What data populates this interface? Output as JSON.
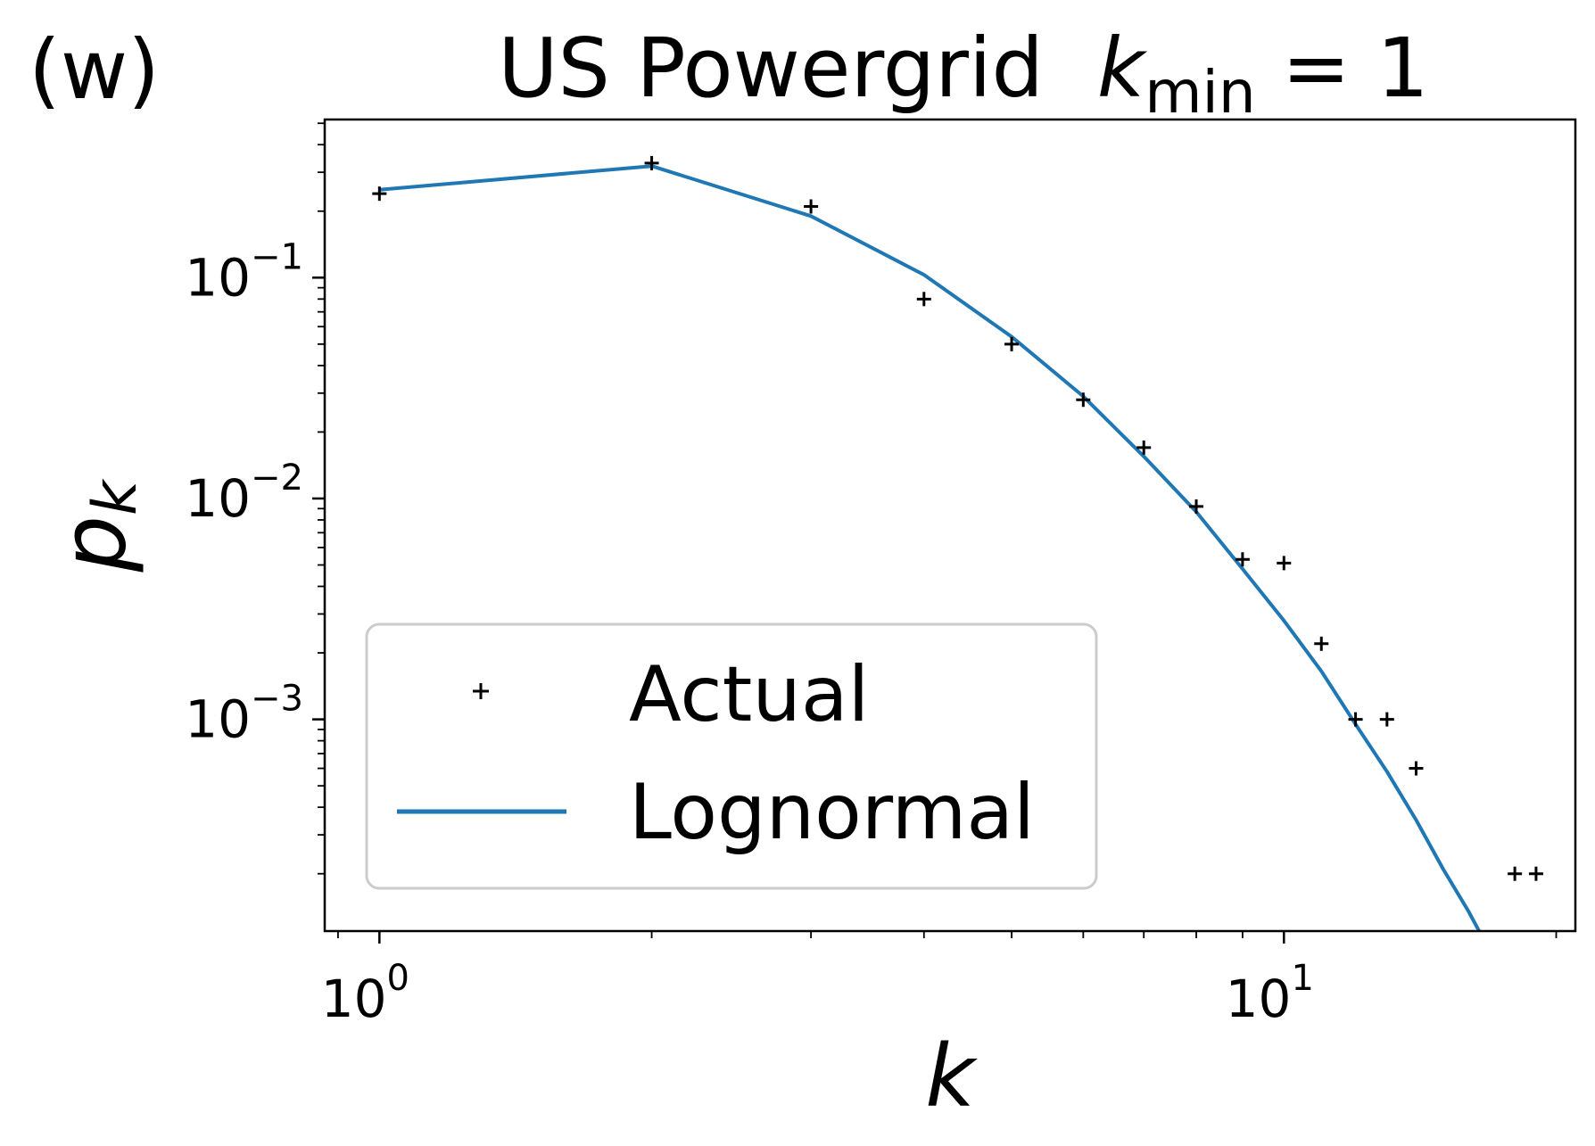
{
  "panel_label": "(w)",
  "title_main": "US Powergrid",
  "title_k": "k",
  "title_sub": "min",
  "title_eq": " = 1",
  "chart_data": {
    "type": "scatter",
    "xscale": "log",
    "yscale": "log",
    "xlabel": "k",
    "ylabel": "p",
    "ylabel_sub": "k",
    "xlim": [
      0.87,
      21
    ],
    "ylim": [
      0.00011,
      0.52
    ],
    "x_ticks": [
      {
        "base": "10",
        "exp": "0",
        "value": 1
      },
      {
        "base": "10",
        "exp": "1",
        "value": 10
      }
    ],
    "y_ticks": [
      {
        "base": "10",
        "exp": "−1",
        "value": 0.1
      },
      {
        "base": "10",
        "exp": "−2",
        "value": 0.01
      },
      {
        "base": "10",
        "exp": "−3",
        "value": 0.001
      }
    ],
    "legend_position": "lower-left",
    "series": [
      {
        "name": "Actual",
        "marker": "+",
        "color": "#000000",
        "x": [
          1,
          2,
          3,
          4,
          5,
          6,
          7,
          8,
          9,
          10,
          11,
          12,
          13,
          14,
          18,
          19
        ],
        "y": [
          0.24,
          0.33,
          0.21,
          0.08,
          0.05,
          0.028,
          0.017,
          0.0092,
          0.0053,
          0.0051,
          0.0022,
          0.001,
          0.001,
          0.0006,
          0.0002,
          0.0002
        ]
      },
      {
        "name": "Lognormal",
        "marker": "line",
        "color": "#1f77b4",
        "x": [
          1,
          2,
          3,
          4,
          5,
          6,
          7,
          8,
          9,
          10,
          11,
          12,
          13,
          14,
          15,
          16,
          17
        ],
        "y": [
          0.25,
          0.32,
          0.19,
          0.103,
          0.054,
          0.029,
          0.0155,
          0.0087,
          0.0048,
          0.0028,
          0.00165,
          0.00095,
          0.00058,
          0.00035,
          0.00021,
          0.000135,
          8.5e-05
        ]
      }
    ]
  }
}
